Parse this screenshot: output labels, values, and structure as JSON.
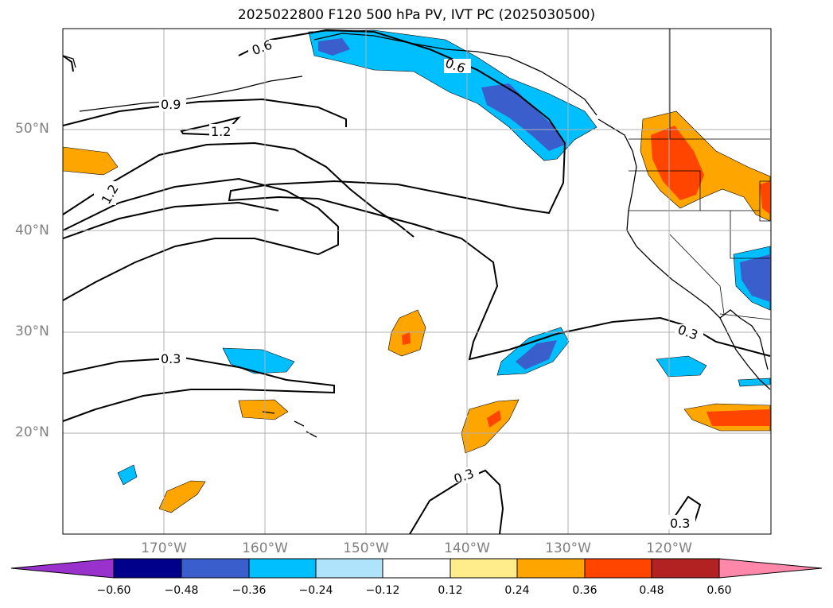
{
  "title": "2025022800 F120 500 hPa PV, IVT PC (2025030500)",
  "lat_labels": [
    "50°N",
    "40°N",
    "30°N",
    "20°N"
  ],
  "lon_labels": [
    "170°W",
    "160°W",
    "150°W",
    "140°W",
    "130°W",
    "120°W"
  ],
  "contour_labels": [
    "0.6",
    "0.6",
    "0.9",
    "1.2",
    "1.2",
    "0.3",
    "0.3",
    "0.3",
    "0.3"
  ],
  "colorbar": {
    "ticks": [
      "−0.60",
      "−0.48",
      "−0.36",
      "−0.24",
      "−0.12",
      "0.12",
      "0.24",
      "0.36",
      "0.48",
      "0.60"
    ],
    "colors": [
      "#9932cc",
      "#00008b",
      "#3a5fcd",
      "#00bfff",
      "#aee3fb",
      "#ffffff",
      "#ffec8b",
      "#ffa500",
      "#ff4500",
      "#b22222",
      "#ff88aa"
    ]
  }
}
